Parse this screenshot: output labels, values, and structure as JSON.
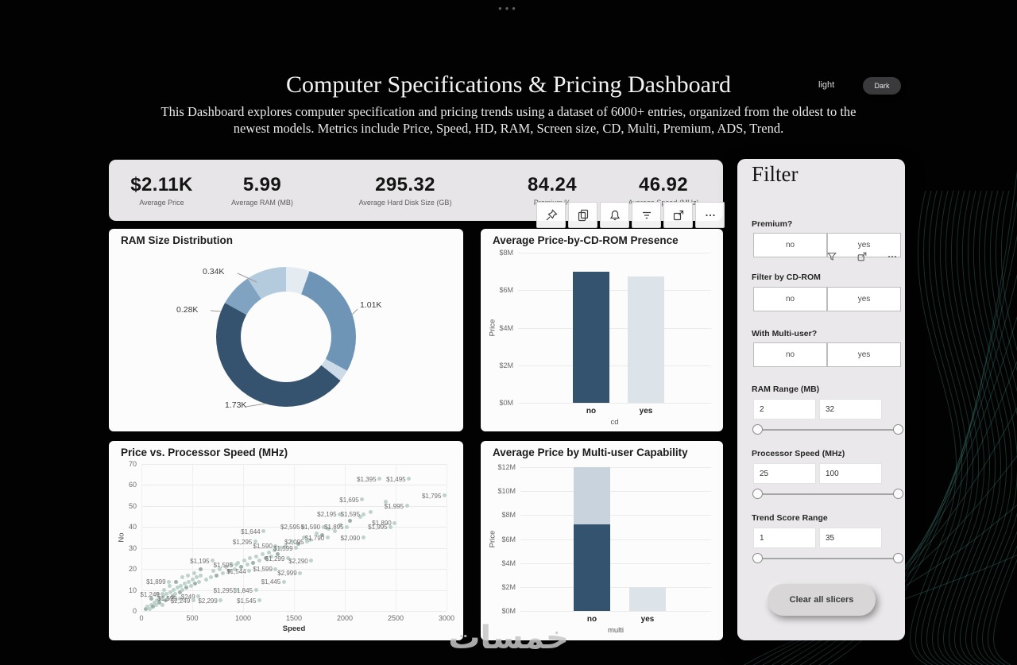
{
  "window": {
    "menu_dots": "•••",
    "watermark": "خمسات"
  },
  "header": {
    "title": "Computer Specifications & Pricing Dashboard",
    "subtitle_line1": "This Dashboard explores computer specification and pricing trends using a dataset of 6000+ entries, organized from the oldest to the",
    "subtitle_line2": "newest models. Metrics include  Price, Speed, HD, RAM, Screen size, CD, Multi, Premium, ADS, Trend.",
    "theme": {
      "light": "light",
      "dark": "Dark"
    }
  },
  "kpis": [
    {
      "value": "$2.11K",
      "label": "Average Price"
    },
    {
      "value": "5.99",
      "label": "Average RAM (MB)"
    },
    {
      "value": "295.32",
      "label": "Average Hard Disk Size (GB)"
    },
    {
      "value": "84.24",
      "label": "Premium %"
    },
    {
      "value": "46.92",
      "label": "Average Speed (MHz)"
    }
  ],
  "visual_toolbar": {
    "icons": [
      "pin",
      "copy",
      "notifications",
      "filter-lines",
      "focus-mode",
      "more-options"
    ]
  },
  "filter_panel": {
    "title": "Filter",
    "sections": [
      {
        "label": "Premium?",
        "options": [
          "no",
          "yes"
        ]
      },
      {
        "label": "Filter by CD-ROM",
        "options": [
          "no",
          "yes"
        ]
      },
      {
        "label": "With Multi-user?",
        "options": [
          "no",
          "yes"
        ]
      },
      {
        "label": "RAM Range (MB)",
        "min": "2",
        "max": "32"
      },
      {
        "label": "Processor Speed (MHz)",
        "min": "25",
        "max": "100"
      },
      {
        "label": "Trend Score Range",
        "min": "1",
        "max": "35"
      }
    ],
    "clear_button": "Clear all slicers"
  },
  "chart_data": [
    {
      "type": "pie",
      "title": "RAM Size Distribution",
      "donut": true,
      "segments": [
        {
          "label": "",
          "value": 0.2,
          "color": "#e4ecf2"
        },
        {
          "label": "1.01K",
          "value": 1.01,
          "color": "#6f95b6"
        },
        {
          "label": "",
          "value": 0.1,
          "color": "#ccdbe7"
        },
        {
          "label": "1.73K",
          "value": 1.73,
          "color": "#35536f"
        },
        {
          "label": "0.28K",
          "value": 0.28,
          "color": "#7fa3c1"
        },
        {
          "label": "0.34K",
          "value": 0.34,
          "color": "#b4cadd"
        }
      ]
    },
    {
      "type": "bar",
      "title": "Average Price-by-CD-ROM Presence",
      "categories": [
        "no",
        "yes"
      ],
      "series": [
        {
          "name": "Average Price",
          "values": [
            7.0,
            6.75
          ]
        }
      ],
      "series_colors": [
        [
          "#33536f",
          "#dce4ea"
        ]
      ],
      "ylabel": "Price",
      "xlabel": "cd",
      "ylim": [
        0,
        8
      ],
      "yticks": [
        "$0M",
        "$2M",
        "$4M",
        "$6M",
        "$8M"
      ]
    },
    {
      "type": "scatter",
      "title": "Price vs. Processor Speed (MHz)",
      "xlabel": "Speed",
      "ylabel": "No",
      "xlim": [
        0,
        3000
      ],
      "ylim": [
        0,
        70
      ],
      "xticks": [
        0,
        500,
        1000,
        1500,
        2000,
        2500,
        3000
      ],
      "yticks": [
        0,
        10,
        20,
        30,
        40,
        50,
        60,
        70
      ],
      "labeled_points": [
        {
          "x": 2340,
          "y": 63,
          "label": "$1,395"
        },
        {
          "x": 2630,
          "y": 63,
          "label": "$1,495"
        },
        {
          "x": 2980,
          "y": 55,
          "label": "$1,795"
        },
        {
          "x": 2170,
          "y": 53,
          "label": "$1,695"
        },
        {
          "x": 2610,
          "y": 50,
          "label": "$1,995"
        },
        {
          "x": 1950,
          "y": 46,
          "label": "$2,195"
        },
        {
          "x": 2180,
          "y": 46,
          "label": "$1,595"
        },
        {
          "x": 2490,
          "y": 42,
          "label": "$1,890"
        },
        {
          "x": 2450,
          "y": 40,
          "label": "$1,995"
        },
        {
          "x": 1590,
          "y": 40,
          "label": "$2,595"
        },
        {
          "x": 1790,
          "y": 40,
          "label": "$1,590"
        },
        {
          "x": 2020,
          "y": 40,
          "label": "$1,895"
        },
        {
          "x": 1200,
          "y": 38,
          "label": "$1,644"
        },
        {
          "x": 1830,
          "y": 35,
          "label": "$1,790"
        },
        {
          "x": 2180,
          "y": 35,
          "label": "$2,090"
        },
        {
          "x": 1120,
          "y": 33,
          "label": "$1,295"
        },
        {
          "x": 1320,
          "y": 31,
          "label": "$1,590"
        },
        {
          "x": 1520,
          "y": 30,
          "label": "$1,599"
        },
        {
          "x": 1630,
          "y": 33,
          "label": "$2,095"
        },
        {
          "x": 1440,
          "y": 25,
          "label": "$1,299"
        },
        {
          "x": 1670,
          "y": 24,
          "label": "$2,290"
        },
        {
          "x": 700,
          "y": 24,
          "label": "$1,195"
        },
        {
          "x": 930,
          "y": 22,
          "label": "$1,595"
        },
        {
          "x": 1060,
          "y": 19,
          "label": "$1,544"
        },
        {
          "x": 1320,
          "y": 20,
          "label": "$1,599"
        },
        {
          "x": 1560,
          "y": 18,
          "label": "$2,999"
        },
        {
          "x": 1400,
          "y": 14,
          "label": "$1,445"
        },
        {
          "x": 270,
          "y": 14,
          "label": "$1,899"
        },
        {
          "x": 1125,
          "y": 10,
          "label": "$1,845"
        },
        {
          "x": 930,
          "y": 10,
          "label": "$1,295"
        },
        {
          "x": 210,
          "y": 8,
          "label": "$1,249"
        },
        {
          "x": 380,
          "y": 6,
          "label": "$1,599"
        },
        {
          "x": 560,
          "y": 7,
          "label": "$249"
        },
        {
          "x": 510,
          "y": 5,
          "label": "$2,249"
        },
        {
          "x": 780,
          "y": 5,
          "label": "$2,299"
        },
        {
          "x": 1160,
          "y": 5,
          "label": "$1,545"
        }
      ],
      "points": [
        [
          40,
          1
        ],
        [
          60,
          2
        ],
        [
          85,
          1
        ],
        [
          95,
          3
        ],
        [
          115,
          2
        ],
        [
          125,
          4
        ],
        [
          145,
          3
        ],
        [
          155,
          5
        ],
        [
          175,
          4
        ],
        [
          185,
          6
        ],
        [
          205,
          3
        ],
        [
          215,
          7
        ],
        [
          235,
          5
        ],
        [
          245,
          8
        ],
        [
          265,
          6
        ],
        [
          285,
          9
        ],
        [
          305,
          7
        ],
        [
          315,
          10
        ],
        [
          335,
          8
        ],
        [
          355,
          11
        ],
        [
          375,
          9
        ],
        [
          385,
          12
        ],
        [
          405,
          10
        ],
        [
          425,
          13
        ],
        [
          445,
          11
        ],
        [
          465,
          14
        ],
        [
          485,
          12
        ],
        [
          505,
          15
        ],
        [
          525,
          13
        ],
        [
          545,
          16
        ],
        [
          565,
          14
        ],
        [
          585,
          17
        ],
        [
          100,
          6
        ],
        [
          160,
          8
        ],
        [
          220,
          10
        ],
        [
          280,
          12
        ],
        [
          340,
          14
        ],
        [
          400,
          16
        ],
        [
          460,
          17
        ],
        [
          520,
          18
        ],
        [
          580,
          20
        ],
        [
          640,
          15
        ],
        [
          680,
          16
        ],
        [
          710,
          19
        ],
        [
          740,
          17
        ],
        [
          770,
          20
        ],
        [
          800,
          18
        ],
        [
          830,
          21
        ],
        [
          860,
          19
        ],
        [
          890,
          22
        ],
        [
          920,
          20
        ],
        [
          950,
          23
        ],
        [
          980,
          21
        ],
        [
          1010,
          24
        ],
        [
          1040,
          22
        ],
        [
          1070,
          25
        ],
        [
          1100,
          23
        ],
        [
          1130,
          26
        ],
        [
          1160,
          24
        ],
        [
          1190,
          27
        ],
        [
          1220,
          25
        ],
        [
          1250,
          28
        ],
        [
          1280,
          26
        ],
        [
          1310,
          29
        ],
        [
          1340,
          27
        ],
        [
          1370,
          30
        ],
        [
          1420,
          31
        ],
        [
          1480,
          33
        ],
        [
          1540,
          32
        ],
        [
          1600,
          35
        ],
        [
          1660,
          34
        ],
        [
          1720,
          37
        ],
        [
          1780,
          36
        ],
        [
          1840,
          39
        ],
        [
          1900,
          38
        ],
        [
          1960,
          41
        ],
        [
          2050,
          43
        ],
        [
          2150,
          45
        ],
        [
          2250,
          47
        ],
        [
          2400,
          52
        ]
      ]
    },
    {
      "type": "bar",
      "title": "Average Price by Multi-user Capability",
      "categories": [
        "no",
        "yes"
      ],
      "series": [
        {
          "name": "highlighted",
          "values": [
            7.2,
            0
          ]
        },
        {
          "name": "total",
          "values": [
            4.8,
            2.0
          ]
        }
      ],
      "series_colors": [
        [
          "#33536f",
          "#33536f"
        ],
        [
          "#c9d3de",
          "#dce4ea"
        ]
      ],
      "ylabel": "Price",
      "xlabel": "multi",
      "ylim": [
        0,
        12
      ],
      "yticks": [
        "$0M",
        "$2M",
        "$4M",
        "$6M",
        "$8M",
        "$10M",
        "$12M"
      ]
    }
  ]
}
